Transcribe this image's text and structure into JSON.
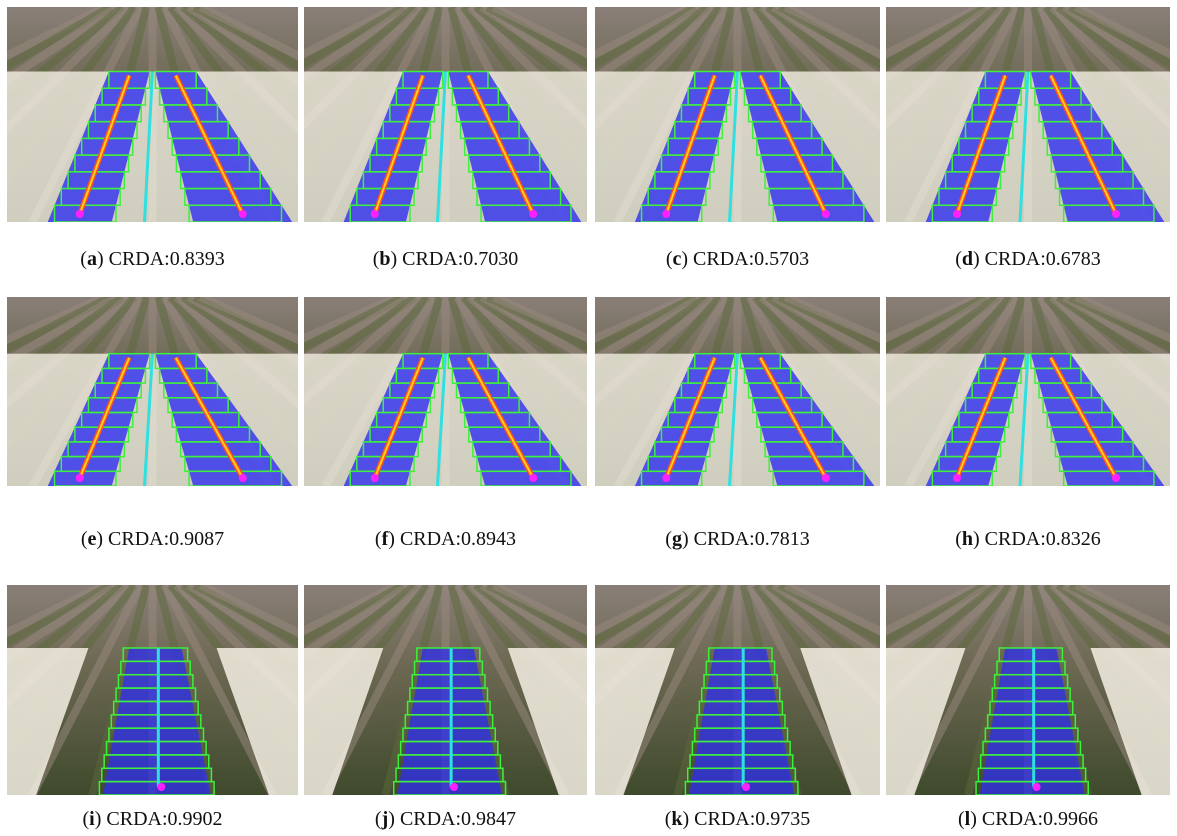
{
  "panels": [
    {
      "open": "(",
      "letter": "a",
      "close": ")",
      "caption": "CRDA:0.8393"
    },
    {
      "open": "(",
      "letter": "b",
      "close": ")",
      "caption": "CRDA:0.7030"
    },
    {
      "open": "(",
      "letter": "c",
      "close": ")",
      "caption": "CRDA:0.5703"
    },
    {
      "open": "(",
      "letter": "d",
      "close": ")",
      "caption": "CRDA:0.6783"
    },
    {
      "open": "(",
      "letter": "e",
      "close": ")",
      "caption": "CRDA:0.9087"
    },
    {
      "open": "(",
      "letter": "f",
      "close": ")",
      "caption": "CRDA:0.8943"
    },
    {
      "open": "(",
      "letter": "g",
      "close": ")",
      "caption": "CRDA:0.7813"
    },
    {
      "open": "(",
      "letter": "h",
      "close": ")",
      "caption": "CRDA:0.8326"
    },
    {
      "open": "(",
      "letter": "i",
      "close": ")",
      "caption": "CRDA:0.9902"
    },
    {
      "open": "(",
      "letter": "j",
      "close": ")",
      "caption": "CRDA:0.9847"
    },
    {
      "open": "(",
      "letter": "k",
      "close": ")",
      "caption": "CRDA:0.9735"
    },
    {
      "open": "(",
      "letter": "l",
      "close": ")",
      "caption": "CRDA:0.9966"
    }
  ]
}
